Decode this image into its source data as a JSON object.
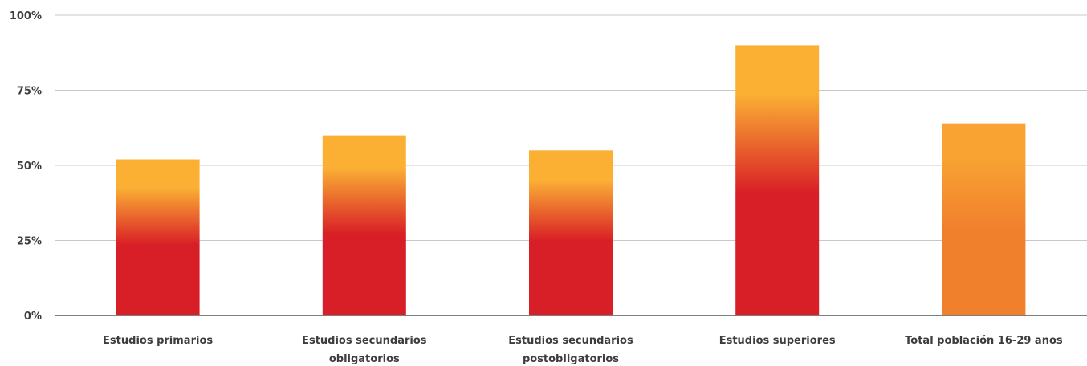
{
  "chart_data": {
    "type": "bar",
    "categories": [
      [
        "Estudios primarios"
      ],
      [
        "Estudios secundarios",
        "obligatorios"
      ],
      [
        "Estudios secundarios",
        "postobligatorios"
      ],
      [
        "Estudios superiores"
      ],
      [
        "Total población 16-29 años"
      ]
    ],
    "values": [
      52,
      60,
      55,
      90,
      64
    ],
    "ylim": [
      0,
      100
    ],
    "yticks": [
      0,
      25,
      50,
      75,
      100
    ],
    "ytick_labels": [
      "0%",
      "25%",
      "50%",
      "75%",
      "100%"
    ],
    "grid": true,
    "colors": {
      "bar_main": "#d81e26",
      "bar_top": "#fbb034",
      "total_main": "#f1802d",
      "total_top": "#f8a332",
      "grid": "#c8c8c8",
      "axis": "#555555"
    }
  }
}
